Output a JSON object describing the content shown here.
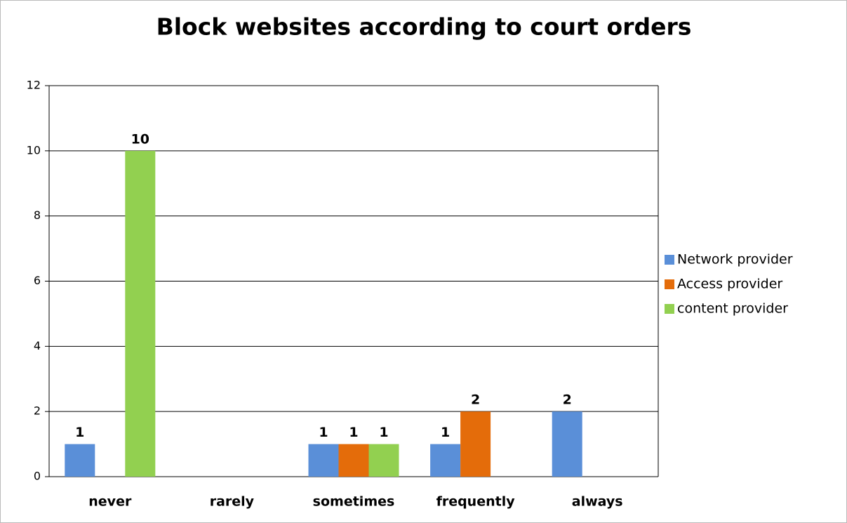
{
  "chart_data": {
    "type": "bar",
    "title": "Block websites according to court orders",
    "categories": [
      "never",
      "rarely",
      "sometimes",
      "frequently",
      "always"
    ],
    "series": [
      {
        "name": "Network provider",
        "color": "#5a8fd8",
        "values": [
          1,
          null,
          1,
          1,
          2
        ]
      },
      {
        "name": "Access provider",
        "color": "#e46c0a",
        "values": [
          null,
          null,
          1,
          2,
          null
        ]
      },
      {
        "name": "content provider",
        "color": "#92d050",
        "values": [
          10,
          null,
          1,
          null,
          null
        ]
      }
    ],
    "ylim": [
      0,
      12
    ],
    "yticks": [
      0,
      2,
      4,
      6,
      8,
      10,
      12
    ],
    "grid": true,
    "legend": "right"
  }
}
